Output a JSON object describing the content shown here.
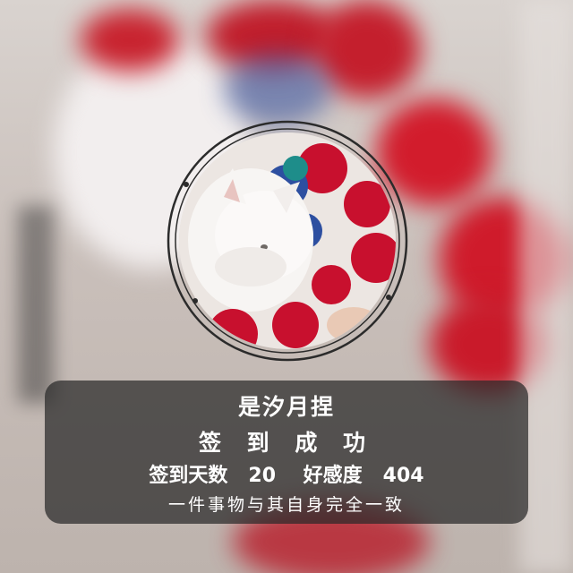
{
  "user": {
    "name": "是汐月捏"
  },
  "checkin": {
    "status_text": "签 到 成 功",
    "days_label": "签到天数",
    "days_value": "20",
    "favor_label": "好感度",
    "favor_value": "404",
    "motto": "一件事物与其自身完全一致"
  },
  "colors": {
    "card_bg": "#282828",
    "accent_red": "#d01a2a",
    "ring": "#2b2b2b"
  }
}
